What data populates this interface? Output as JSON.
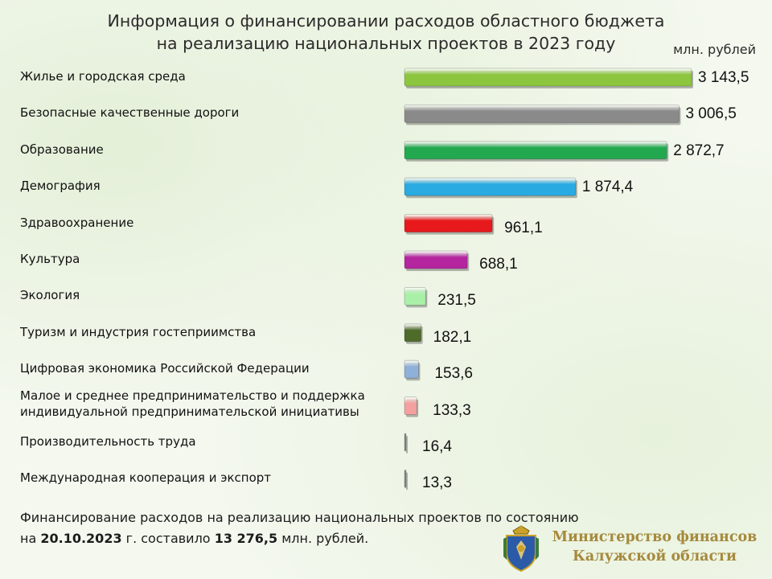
{
  "chart_data": {
    "type": "bar",
    "orientation": "horizontal",
    "title": "Информация о финансировании расходов областного бюджета на реализацию национальных проектов в 2023 году",
    "title_lines": [
      "Информация о финансировании расходов областного бюджета",
      "на реализацию национальных проектов в 2023 году"
    ],
    "unit": "млн. рублей",
    "categories": [
      "Жилье и городская среда",
      "Безопасные качественные дороги",
      "Образование",
      "Демография",
      "Здравоохранение",
      "Культура",
      "Экология",
      "Туризм и индустрия гостеприимства",
      "Цифровая экономика Российской Федерации",
      "Малое и среднее предпринимательство и поддержка индивидуальной предпринимательской инициативы",
      "Производительность труда",
      "Международная кооперация и экспорт"
    ],
    "values": [
      3143.5,
      3006.5,
      2872.7,
      1874.4,
      961.1,
      688.1,
      231.5,
      182.1,
      153.6,
      133.3,
      16.4,
      13.3
    ],
    "value_labels": [
      "3 143,5",
      "3 006,5",
      "2 872,7",
      "1 874,4",
      "961,1",
      "688,1",
      "231,5",
      "182,1",
      "153,6",
      "133,3",
      "16,4",
      "13,3"
    ],
    "colors": [
      "#8cc63f",
      "#8a8a8a",
      "#22a94f",
      "#29abe2",
      "#e8191c",
      "#b5259f",
      "#a8f0a8",
      "#4f6b2a",
      "#8fb0d8",
      "#f4a0a0",
      "#8a8a8a",
      "#8a8a8a"
    ],
    "xlim": [
      0,
      3143.5
    ],
    "grid": false,
    "legend": "none"
  },
  "footer": {
    "text1": "Финансирование  расходов на реализацию  национальных проектов  по состоянию",
    "text2_prefix": "на ",
    "date": "20.10.2023",
    "text2_mid": " г. составило ",
    "total": "13 276,5",
    "text2_suffix": " млн. рублей."
  },
  "ministry": {
    "line1": "Министерство финансов",
    "line2": "Калужской области",
    "emblem_icon": "kaluga-coat-of-arms-icon"
  }
}
